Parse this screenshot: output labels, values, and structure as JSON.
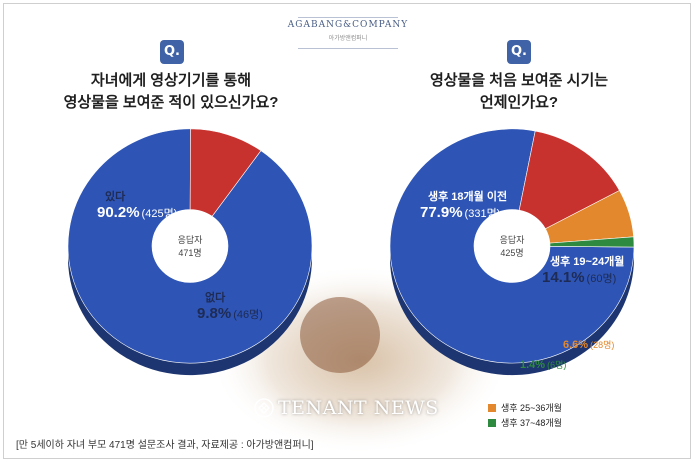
{
  "brand": {
    "name": "AGABANG&COMPANY",
    "sub": "아가방앤컴퍼니"
  },
  "questions": {
    "q_badge": "Q.",
    "left_line1": "자녀에게 영상기기를 통해",
    "left_line2": "영상물을 보여준 적이 있으신가요?",
    "right_line1": "영상물을 처음 보여준 시기는",
    "right_line2": "언제인가요?"
  },
  "chart_data": [
    {
      "type": "pie",
      "variant": "donut",
      "title": "자녀에게 영상기기를 통해 영상물을 보여준 적이 있으신가요?",
      "center_label": [
        "응답자",
        "471명"
      ],
      "slices": [
        {
          "label": "있다",
          "percent": 90.2,
          "count_text": "(425명)",
          "pct_text": "90.2%",
          "color": "#2e55b5"
        },
        {
          "label": "없다",
          "percent": 9.8,
          "count_text": "(46명)",
          "pct_text": "9.8%",
          "color": "#c8322e"
        }
      ]
    },
    {
      "type": "pie",
      "variant": "donut",
      "title": "영상물을 처음 보여준 시기는 언제인가요?",
      "center_label": [
        "응답자",
        "425명"
      ],
      "slices": [
        {
          "label": "생후 18개월 이전",
          "percent": 77.9,
          "count_text": "(331명)",
          "pct_text": "77.9%",
          "color": "#2e55b5"
        },
        {
          "label": "생후 19~24개월",
          "percent": 14.1,
          "count_text": "(60명)",
          "pct_text": "14.1%",
          "color": "#c8322e"
        },
        {
          "label": "생후 25~36개월",
          "percent": 6.6,
          "count_text": "(28명)",
          "pct_text": "6.6%",
          "color": "#e3882c"
        },
        {
          "label": "생후 37~48개월",
          "percent": 1.4,
          "count_text": "(6명)",
          "pct_text": "1.4%",
          "color": "#2e8a3e"
        }
      ],
      "legend": [
        "생후 25~36개월",
        "생후 37~48개월"
      ]
    }
  ],
  "footer": "[만 5세이하 자녀 부모 471명 설문조사 결과, 자료제공 : 아가방앤컴퍼니]",
  "watermark": "TENANT NEWS"
}
